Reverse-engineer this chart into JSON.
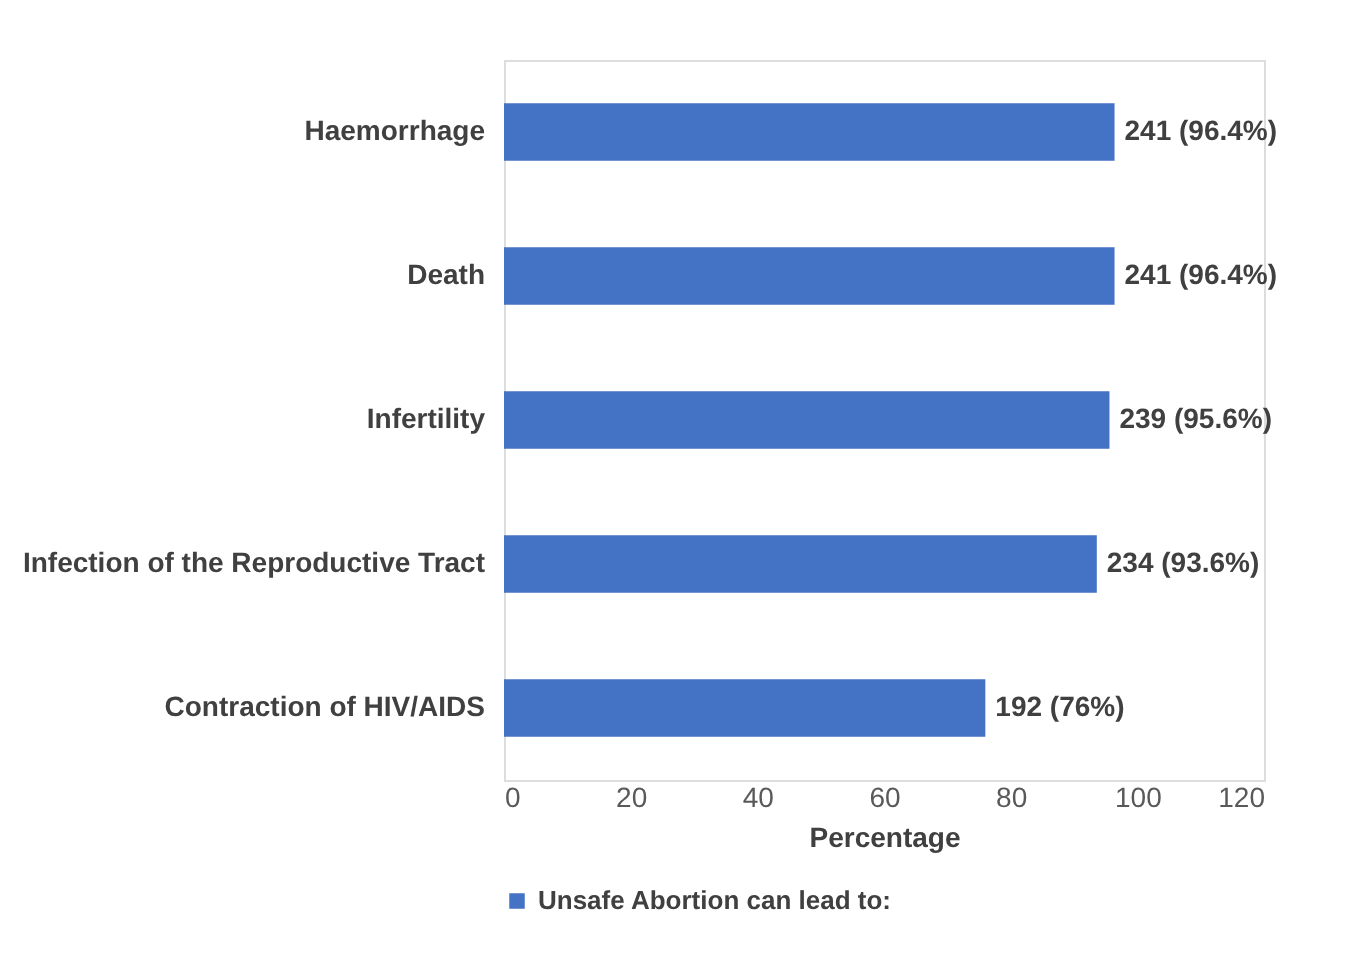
{
  "chart_data": {
    "type": "bar",
    "orientation": "horizontal",
    "xlabel": "Percentage",
    "categories": [
      "Haemorrhage",
      "Death",
      "Infertility",
      "Infection of the Reproductive Tract",
      "Contraction of HIV/AIDS"
    ],
    "series": [
      {
        "name": "Unsafe Abortion can lead to:",
        "color": "#4472c4",
        "values": [
          96.4,
          96.4,
          95.6,
          93.6,
          76
        ],
        "value_labels": [
          "241 (96.4%)",
          "241 (96.4%)",
          "239 (95.6%)",
          "234 (93.6%)",
          "192 (76%)"
        ]
      }
    ],
    "xlim": [
      0,
      120
    ],
    "xticks": [
      0,
      20,
      40,
      60,
      80,
      100,
      120
    ],
    "grid": false,
    "legend": "bottom"
  }
}
